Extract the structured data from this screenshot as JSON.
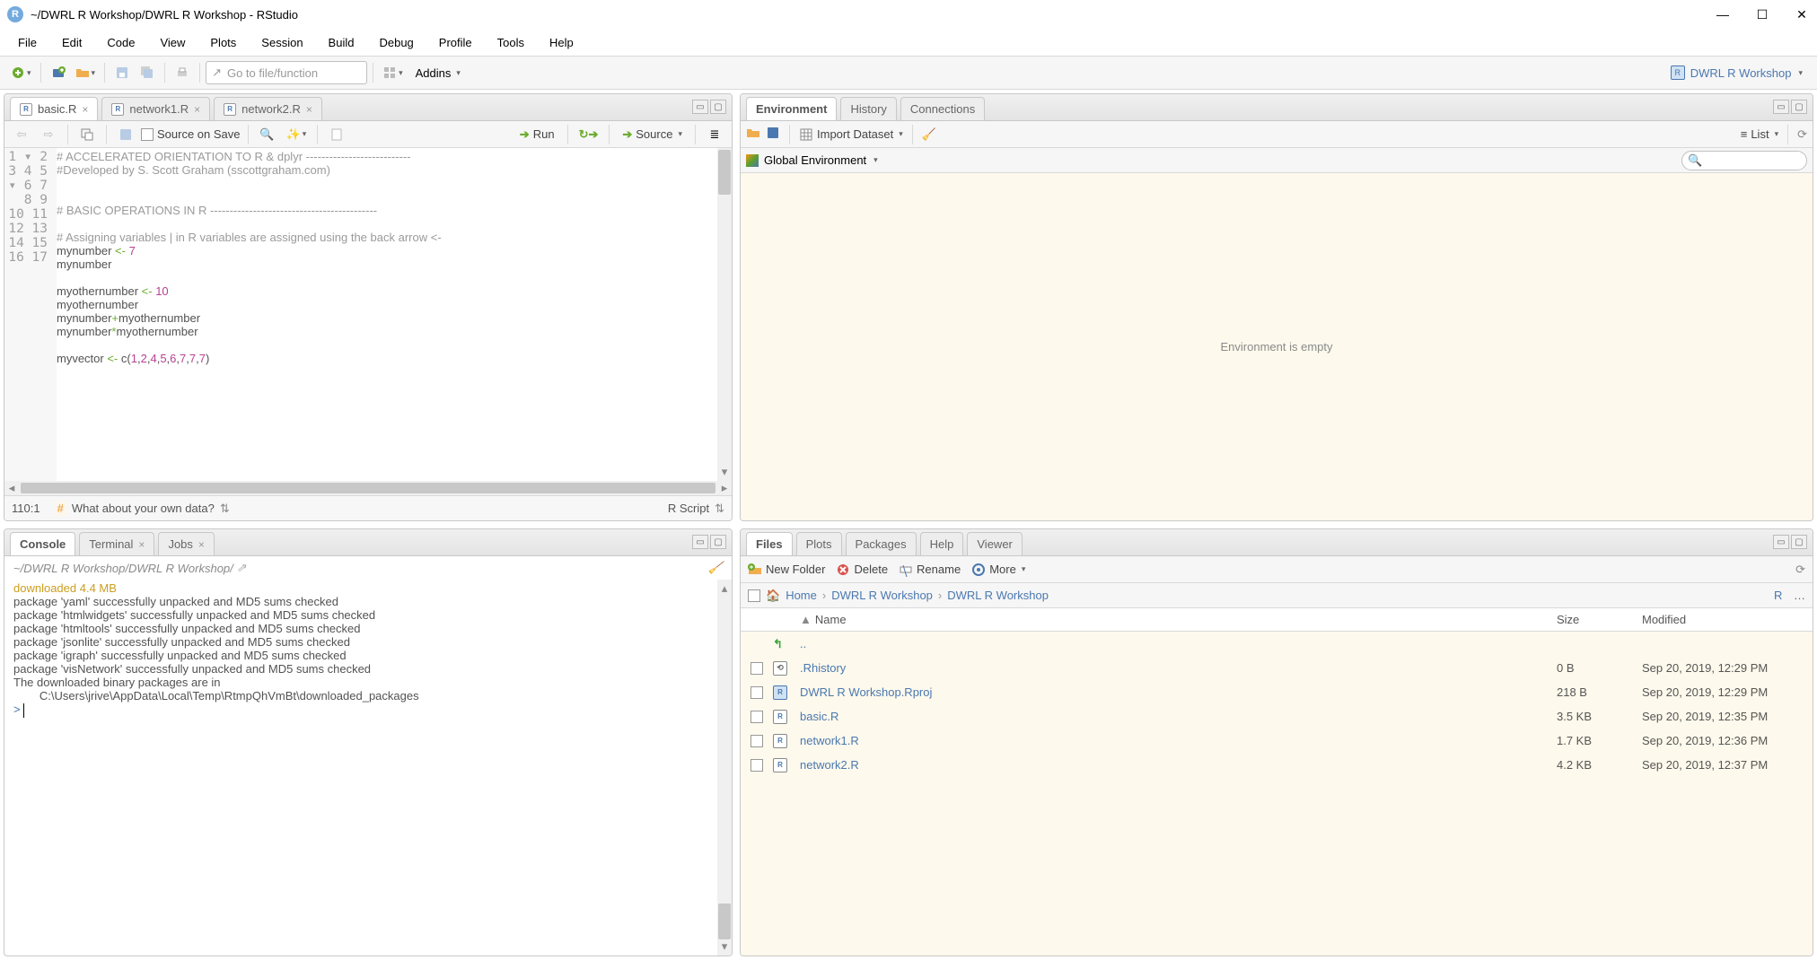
{
  "window": {
    "title": "~/DWRL R Workshop/DWRL R Workshop - RStudio"
  },
  "menubar": [
    "File",
    "Edit",
    "Code",
    "View",
    "Plots",
    "Session",
    "Build",
    "Debug",
    "Profile",
    "Tools",
    "Help"
  ],
  "toolbar": {
    "goto_placeholder": "Go to file/function",
    "addins_label": "Addins",
    "project_label": "DWRL R Workshop"
  },
  "source": {
    "tabs": [
      {
        "label": "basic.R",
        "active": true
      },
      {
        "label": "network1.R",
        "active": false
      },
      {
        "label": "network2.R",
        "active": false
      }
    ],
    "source_on_save": "Source on Save",
    "run_label": "Run",
    "source_label": "Source",
    "cursor_pos": "110:1",
    "outline_label": "What about your own data?",
    "filetype": "R Script",
    "code_lines": [
      {
        "n": 1,
        "fold": true,
        "html": "<span class='c-comment'># ACCELERATED ORIENTATION TO R &amp; dplyr ---------------------------</span>"
      },
      {
        "n": 2,
        "html": "<span class='c-comment'>#Developed by S. Scott Graham (sscottgraham.com)</span>"
      },
      {
        "n": 3,
        "html": ""
      },
      {
        "n": 4,
        "html": ""
      },
      {
        "n": 5,
        "fold": true,
        "html": "<span class='c-comment'># BASIC OPERATIONS IN R -------------------------------------------</span>"
      },
      {
        "n": 6,
        "html": ""
      },
      {
        "n": 7,
        "html": "<span class='c-comment'># Assigning variables | in R variables are assigned using the back arrow &lt;-</span>"
      },
      {
        "n": 8,
        "html": "mynumber <span class='c-op'>&lt;-</span> <span class='c-num'>7</span>"
      },
      {
        "n": 9,
        "html": "mynumber"
      },
      {
        "n": 10,
        "html": ""
      },
      {
        "n": 11,
        "html": "myothernumber <span class='c-op'>&lt;-</span> <span class='c-num'>10</span>"
      },
      {
        "n": 12,
        "html": "myothernumber"
      },
      {
        "n": 13,
        "html": "mynumber<span class='c-op'>+</span>myothernumber"
      },
      {
        "n": 14,
        "html": "mynumber<span class='c-op'>*</span>myothernumber"
      },
      {
        "n": 15,
        "html": ""
      },
      {
        "n": 16,
        "html": "myvector <span class='c-op'>&lt;-</span> <span class='c-fn'>c</span>(<span class='c-num'>1</span>,<span class='c-num'>2</span>,<span class='c-num'>4</span>,<span class='c-num'>5</span>,<span class='c-num'>6</span>,<span class='c-num'>7</span>,<span class='c-num'>7</span>,<span class='c-num'>7</span>)"
      },
      {
        "n": 17,
        "html": ""
      }
    ]
  },
  "console": {
    "tab_console": "Console",
    "tab_terminal": "Terminal",
    "tab_jobs": "Jobs",
    "path": "~/DWRL R Workshop/DWRL R Workshop/",
    "lines": [
      {
        "cls": "dl",
        "text": "downloaded 4.4 MB"
      },
      {
        "text": ""
      },
      {
        "text": "package 'yaml' successfully unpacked and MD5 sums checked"
      },
      {
        "text": "package 'htmlwidgets' successfully unpacked and MD5 sums checked"
      },
      {
        "text": "package 'htmltools' successfully unpacked and MD5 sums checked"
      },
      {
        "text": "package 'jsonlite' successfully unpacked and MD5 sums checked"
      },
      {
        "text": "package 'igraph' successfully unpacked and MD5 sums checked"
      },
      {
        "text": "package 'visNetwork' successfully unpacked and MD5 sums checked"
      },
      {
        "text": ""
      },
      {
        "text": "The downloaded binary packages are in"
      },
      {
        "text": "        C:\\Users\\jrive\\AppData\\Local\\Temp\\RtmpQhVmBt\\downloaded_packages"
      }
    ],
    "prompt": "> "
  },
  "env": {
    "tab_env": "Environment",
    "tab_hist": "History",
    "tab_conn": "Connections",
    "import_label": "Import Dataset",
    "list_label": "List",
    "scope_label": "Global Environment",
    "empty_msg": "Environment is empty"
  },
  "files": {
    "tab_files": "Files",
    "tab_plots": "Plots",
    "tab_pkg": "Packages",
    "tab_help": "Help",
    "tab_viewer": "Viewer",
    "new_folder": "New Folder",
    "delete": "Delete",
    "rename": "Rename",
    "more": "More",
    "bc_home": "Home",
    "bc_1": "DWRL R Workshop",
    "bc_2": "DWRL R Workshop",
    "head_name": "Name",
    "head_size": "Size",
    "head_mod": "Modified",
    "up_label": "..",
    "rows": [
      {
        "icon": "hist",
        "name": ".Rhistory",
        "size": "0 B",
        "mod": "Sep 20, 2019, 12:29 PM"
      },
      {
        "icon": "proj",
        "name": "DWRL R Workshop.Rproj",
        "size": "218 B",
        "mod": "Sep 20, 2019, 12:29 PM"
      },
      {
        "icon": "r",
        "name": "basic.R",
        "size": "3.5 KB",
        "mod": "Sep 20, 2019, 12:35 PM"
      },
      {
        "icon": "r",
        "name": "network1.R",
        "size": "1.7 KB",
        "mod": "Sep 20, 2019, 12:36 PM"
      },
      {
        "icon": "r",
        "name": "network2.R",
        "size": "4.2 KB",
        "mod": "Sep 20, 2019, 12:37 PM"
      }
    ]
  }
}
